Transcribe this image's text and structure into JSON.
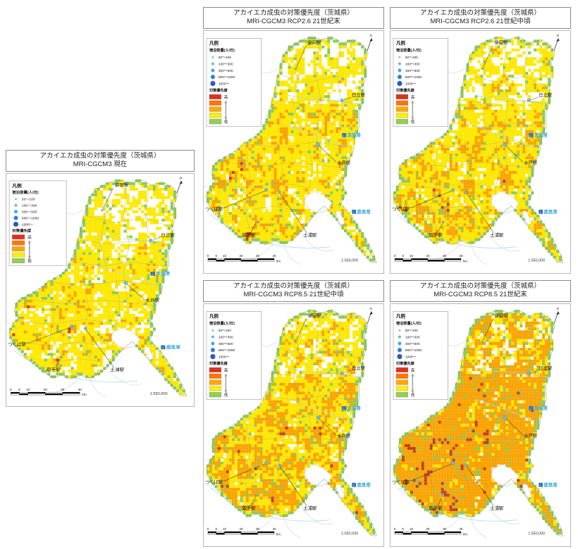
{
  "shared": {
    "title_line1": "アカイエカ成虫の対策優先度（茨城県）",
    "north_label": "N",
    "scale_text": "1:550,000",
    "scalebar": {
      "ticks": [
        "0",
        "5",
        "10",
        "20",
        "30",
        "40"
      ],
      "unit": "km"
    },
    "legend": {
      "heading": "凡例",
      "capacity_heading": "宿泊容量(人/日)",
      "capacity_classes": [
        "50～100",
        "100～300",
        "300～500",
        "500～1000",
        "1000～"
      ],
      "capacity_dot_colors": [
        "#8ed6f2",
        "#5fc2ec",
        "#3fa9e0",
        "#2f7fd4",
        "#3056c8"
      ],
      "priority_heading": "対策優先度",
      "priority_high": "高",
      "priority_low": "低",
      "priority_colors": [
        "#e0301e",
        "#ff7700",
        "#ffa800",
        "#ffee00",
        "#92d050"
      ]
    },
    "map_colors": {
      "yellow": "#ffe800",
      "orange": "#f9a300",
      "red": "#bd421f",
      "green": "#8ccb56",
      "boundary": "#9a9a9a",
      "water": "#aadcf0",
      "port_text": "#3aa8dc",
      "port_icon": "#2c6fbe"
    },
    "stations": [
      {
        "key": "fukuroda",
        "text": "袋田駅"
      },
      {
        "key": "hitachi",
        "text": "日立駅"
      },
      {
        "key": "mito",
        "text": "水戸駅"
      },
      {
        "key": "tsukuba",
        "text": "つくば駅"
      },
      {
        "key": "toride",
        "text": "取手駅"
      },
      {
        "key": "tsuchiura",
        "text": "土浦駅"
      }
    ],
    "ports": [
      {
        "key": "ibaraki-port",
        "text": "茨城港"
      },
      {
        "key": "kashima-port",
        "text": "鹿島港"
      }
    ]
  },
  "panels": [
    {
      "key": "current",
      "subtitle": "MRI-CGCM3 現在",
      "mosaic": {
        "seed": 11,
        "white": 0.3,
        "yellow": 0.52,
        "orange": 0.165,
        "red": 0.015
      }
    },
    {
      "key": "rcp26-late",
      "subtitle": "MRI-CGCM3 RCP2.6 21世紀末",
      "mosaic": {
        "seed": 23,
        "white": 0.22,
        "yellow": 0.5,
        "orange": 0.26,
        "red": 0.02
      }
    },
    {
      "key": "rcp26-mid",
      "subtitle": "MRI-CGCM3 RCP2.6 21世紀中頃",
      "mosaic": {
        "seed": 37,
        "white": 0.2,
        "yellow": 0.47,
        "orange": 0.3,
        "red": 0.03
      }
    },
    {
      "key": "rcp85-mid",
      "subtitle": "MRI-CGCM3 RCP8.5 21世紀中頃",
      "mosaic": {
        "seed": 51,
        "white": 0.16,
        "yellow": 0.4,
        "orange": 0.4,
        "red": 0.04
      }
    },
    {
      "key": "rcp85-late",
      "subtitle": "MRI-CGCM3 RCP8.5 21世紀末",
      "mosaic": {
        "seed": 67,
        "white": 0.08,
        "yellow": 0.17,
        "orange": 0.61,
        "red": 0.14
      }
    }
  ]
}
